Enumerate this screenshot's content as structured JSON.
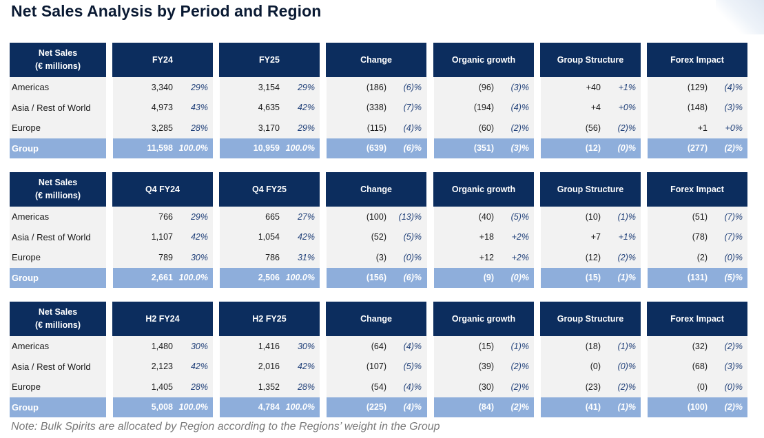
{
  "title": "Net Sales Analysis by Period and Region",
  "note": "Note: Bulk Spirits are allocated by Region according to the Regions’ weight in the Group",
  "colors": {
    "header_bg": "#0c2d5e",
    "group_row_bg": "#8eaedb",
    "row_bg": "#f2f2f2"
  },
  "tables": [
    {
      "label_line1": "Net Sales",
      "label_line2": "(€ millions)",
      "columns": [
        "FY24",
        "FY25",
        "Change",
        "Organic growth",
        "Group Structure",
        "Forex Impact"
      ],
      "rows": [
        {
          "label": "Americas",
          "cells": [
            [
              "3,340",
              "29%"
            ],
            [
              "3,154",
              "29%"
            ],
            [
              "(186)",
              "(6)%"
            ],
            [
              "(96)",
              "(3)%"
            ],
            [
              "+40",
              "+1%"
            ],
            [
              "(129)",
              "(4)%"
            ]
          ]
        },
        {
          "label": "Asia / Rest of World",
          "cells": [
            [
              "4,973",
              "43%"
            ],
            [
              "4,635",
              "42%"
            ],
            [
              "(338)",
              "(7)%"
            ],
            [
              "(194)",
              "(4)%"
            ],
            [
              "+4",
              "+0%"
            ],
            [
              "(148)",
              "(3)%"
            ]
          ]
        },
        {
          "label": "Europe",
          "cells": [
            [
              "3,285",
              "28%"
            ],
            [
              "3,170",
              "29%"
            ],
            [
              "(115)",
              "(4)%"
            ],
            [
              "(60)",
              "(2)%"
            ],
            [
              "(56)",
              "(2)%"
            ],
            [
              "+1",
              "+0%"
            ]
          ]
        },
        {
          "label": "Group",
          "cells": [
            [
              "11,598",
              "100.0%"
            ],
            [
              "10,959",
              "100.0%"
            ],
            [
              "(639)",
              "(6)%"
            ],
            [
              "(351)",
              "(3)%"
            ],
            [
              "(12)",
              "(0)%"
            ],
            [
              "(277)",
              "(2)%"
            ]
          ]
        }
      ]
    },
    {
      "label_line1": "Net Sales",
      "label_line2": "(€ millions)",
      "columns": [
        "Q4 FY24",
        "Q4 FY25",
        "Change",
        "Organic growth",
        "Group Structure",
        "Forex Impact"
      ],
      "rows": [
        {
          "label": "Americas",
          "cells": [
            [
              "766",
              "29%"
            ],
            [
              "665",
              "27%"
            ],
            [
              "(100)",
              "(13)%"
            ],
            [
              "(40)",
              "(5)%"
            ],
            [
              "(10)",
              "(1)%"
            ],
            [
              "(51)",
              "(7)%"
            ]
          ]
        },
        {
          "label": "Asia / Rest of World",
          "cells": [
            [
              "1,107",
              "42%"
            ],
            [
              "1,054",
              "42%"
            ],
            [
              "(52)",
              "(5)%"
            ],
            [
              "+18",
              "+2%"
            ],
            [
              "+7",
              "+1%"
            ],
            [
              "(78)",
              "(7)%"
            ]
          ]
        },
        {
          "label": "Europe",
          "cells": [
            [
              "789",
              "30%"
            ],
            [
              "786",
              "31%"
            ],
            [
              "(3)",
              "(0)%"
            ],
            [
              "+12",
              "+2%"
            ],
            [
              "(12)",
              "(2)%"
            ],
            [
              "(2)",
              "(0)%"
            ]
          ]
        },
        {
          "label": "Group",
          "cells": [
            [
              "2,661",
              "100.0%"
            ],
            [
              "2,506",
              "100.0%"
            ],
            [
              "(156)",
              "(6)%"
            ],
            [
              "(9)",
              "(0)%"
            ],
            [
              "(15)",
              "(1)%"
            ],
            [
              "(131)",
              "(5)%"
            ]
          ]
        }
      ]
    },
    {
      "label_line1": "Net Sales",
      "label_line2": "(€ millions)",
      "columns": [
        "H2 FY24",
        "H2 FY25",
        "Change",
        "Organic growth",
        "Group Structure",
        "Forex Impact"
      ],
      "rows": [
        {
          "label": "Americas",
          "cells": [
            [
              "1,480",
              "30%"
            ],
            [
              "1,416",
              "30%"
            ],
            [
              "(64)",
              "(4)%"
            ],
            [
              "(15)",
              "(1)%"
            ],
            [
              "(18)",
              "(1)%"
            ],
            [
              "(32)",
              "(2)%"
            ]
          ]
        },
        {
          "label": "Asia / Rest of World",
          "cells": [
            [
              "2,123",
              "42%"
            ],
            [
              "2,016",
              "42%"
            ],
            [
              "(107)",
              "(5)%"
            ],
            [
              "(39)",
              "(2)%"
            ],
            [
              "(0)",
              "(0)%"
            ],
            [
              "(68)",
              "(3)%"
            ]
          ]
        },
        {
          "label": "Europe",
          "cells": [
            [
              "1,405",
              "28%"
            ],
            [
              "1,352",
              "28%"
            ],
            [
              "(54)",
              "(4)%"
            ],
            [
              "(30)",
              "(2)%"
            ],
            [
              "(23)",
              "(2)%"
            ],
            [
              "(0)",
              "(0)%"
            ]
          ]
        },
        {
          "label": "Group",
          "cells": [
            [
              "5,008",
              "100.0%"
            ],
            [
              "4,784",
              "100.0%"
            ],
            [
              "(225)",
              "(4)%"
            ],
            [
              "(84)",
              "(2)%"
            ],
            [
              "(41)",
              "(1)%"
            ],
            [
              "(100)",
              "(2)%"
            ]
          ]
        }
      ]
    }
  ]
}
